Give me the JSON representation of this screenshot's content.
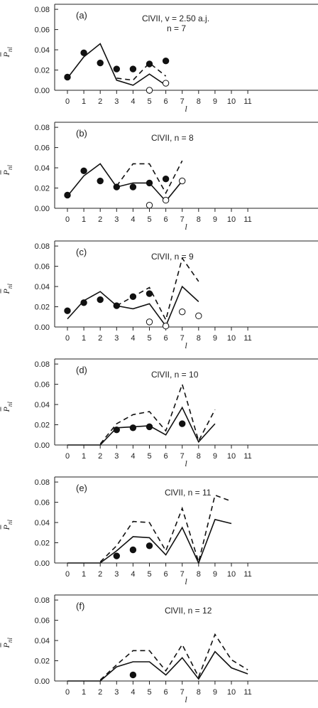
{
  "figure": {
    "xlabel": "l",
    "ylabel": "P",
    "ylabel_sub": "nl",
    "xticks": [
      "0",
      "1",
      "2",
      "3",
      "4",
      "5",
      "6",
      "7",
      "8",
      "9",
      "10",
      "11"
    ],
    "yticks": [
      "0.00",
      "0.02",
      "0.04",
      "0.06",
      "0.08"
    ]
  },
  "chart_data": [
    {
      "type": "line",
      "panel": "(a)",
      "annotation_line1": "ClVII, v = 2.50 a.j.",
      "annotation_line2": "n  = 7",
      "xlim": [
        0,
        11
      ],
      "ylim": [
        0,
        0.085
      ],
      "series": [
        {
          "style": "solid",
          "points": [
            [
              0,
              0.012
            ],
            [
              1,
              0.033
            ],
            [
              2,
              0.046
            ],
            [
              3,
              0.01
            ],
            [
              4,
              0.005
            ],
            [
              5,
              0.016
            ],
            [
              6,
              0.005
            ]
          ]
        },
        {
          "style": "dashed",
          "points": [
            [
              3,
              0.012
            ],
            [
              4,
              0.01
            ],
            [
              5,
              0.027
            ],
            [
              6,
              0.014
            ]
          ]
        },
        {
          "style": "filled-circle",
          "points": [
            [
              0,
              0.013
            ],
            [
              1,
              0.037
            ],
            [
              2,
              0.027
            ],
            [
              3,
              0.021
            ],
            [
              4,
              0.021
            ],
            [
              5,
              0.026
            ],
            [
              6,
              0.029
            ]
          ]
        },
        {
          "style": "open-circle",
          "points": [
            [
              5,
              0.0
            ],
            [
              6,
              0.007
            ]
          ]
        }
      ]
    },
    {
      "type": "line",
      "panel": "(b)",
      "annotation_line1": "ClVII,  n = 8",
      "annotation_line2": "",
      "xlim": [
        0,
        11
      ],
      "ylim": [
        0,
        0.085
      ],
      "series": [
        {
          "style": "solid",
          "points": [
            [
              0,
              0.012
            ],
            [
              1,
              0.032
            ],
            [
              2,
              0.044
            ],
            [
              3,
              0.021
            ],
            [
              4,
              0.025
            ],
            [
              5,
              0.025
            ],
            [
              6,
              0.007
            ],
            [
              7,
              0.027
            ]
          ]
        },
        {
          "style": "dashed",
          "points": [
            [
              3,
              0.022
            ],
            [
              4,
              0.044
            ],
            [
              5,
              0.044
            ],
            [
              6,
              0.015
            ],
            [
              7,
              0.047
            ]
          ]
        },
        {
          "style": "filled-circle",
          "points": [
            [
              0,
              0.013
            ],
            [
              1,
              0.037
            ],
            [
              2,
              0.027
            ],
            [
              3,
              0.021
            ],
            [
              4,
              0.021
            ],
            [
              5,
              0.025
            ],
            [
              6,
              0.029
            ]
          ]
        },
        {
          "style": "open-circle",
          "points": [
            [
              5,
              0.003
            ],
            [
              6,
              0.008
            ],
            [
              7,
              0.027
            ]
          ]
        }
      ]
    },
    {
      "type": "line",
      "panel": "(c)",
      "annotation_line1": "ClVII,  n = 9",
      "annotation_line2": "",
      "xlim": [
        0,
        11
      ],
      "ylim": [
        0,
        0.085
      ],
      "series": [
        {
          "style": "solid",
          "points": [
            [
              0,
              0.008
            ],
            [
              1,
              0.026
            ],
            [
              2,
              0.035
            ],
            [
              3,
              0.021
            ],
            [
              4,
              0.018
            ],
            [
              5,
              0.023
            ],
            [
              6,
              0.001
            ],
            [
              7,
              0.04
            ],
            [
              8,
              0.025
            ]
          ]
        },
        {
          "style": "dashed",
          "points": [
            [
              3,
              0.021
            ],
            [
              4,
              0.03
            ],
            [
              5,
              0.039
            ],
            [
              6,
              0.007
            ],
            [
              7,
              0.068
            ],
            [
              8,
              0.045
            ]
          ]
        },
        {
          "style": "filled-circle",
          "points": [
            [
              0,
              0.016
            ],
            [
              1,
              0.024
            ],
            [
              2,
              0.027
            ],
            [
              3,
              0.021
            ],
            [
              4,
              0.03
            ],
            [
              5,
              0.033
            ]
          ]
        },
        {
          "style": "open-circle",
          "points": [
            [
              5,
              0.005
            ],
            [
              6,
              0.001
            ],
            [
              7,
              0.015
            ],
            [
              8,
              0.011
            ]
          ]
        }
      ]
    },
    {
      "type": "line",
      "panel": "(d)",
      "annotation_line1": "ClVII,  n = 10",
      "annotation_line2": "",
      "xlim": [
        0,
        11
      ],
      "ylim": [
        0,
        0.085
      ],
      "series": [
        {
          "style": "solid",
          "points": [
            [
              0,
              0
            ],
            [
              1,
              0
            ],
            [
              2,
              0
            ],
            [
              3,
              0.017
            ],
            [
              4,
              0.018
            ],
            [
              5,
              0.019
            ],
            [
              6,
              0.01
            ],
            [
              7,
              0.037
            ],
            [
              8,
              0.003
            ],
            [
              9,
              0.021
            ]
          ]
        },
        {
          "style": "dashed",
          "points": [
            [
              2,
              0.001
            ],
            [
              3,
              0.021
            ],
            [
              4,
              0.03
            ],
            [
              5,
              0.033
            ],
            [
              6,
              0.014
            ],
            [
              7,
              0.06
            ],
            [
              8,
              0.004
            ],
            [
              9,
              0.035
            ]
          ]
        },
        {
          "style": "filled-circle",
          "points": [
            [
              3,
              0.015
            ],
            [
              4,
              0.017
            ],
            [
              5,
              0.018
            ],
            [
              7,
              0.021
            ]
          ]
        }
      ]
    },
    {
      "type": "line",
      "panel": "(e)",
      "annotation_line1": "ClVII,  n = 11",
      "annotation_line2": "",
      "xlim": [
        0,
        11
      ],
      "ylim": [
        0,
        0.085
      ],
      "series": [
        {
          "style": "solid",
          "points": [
            [
              0,
              0
            ],
            [
              1,
              0
            ],
            [
              2,
              0
            ],
            [
              3,
              0.012
            ],
            [
              4,
              0.026
            ],
            [
              5,
              0.025
            ],
            [
              6,
              0.008
            ],
            [
              7,
              0.035
            ],
            [
              8,
              0
            ],
            [
              9,
              0.043
            ],
            [
              10,
              0.039
            ]
          ]
        },
        {
          "style": "dashed",
          "points": [
            [
              2,
              0.001
            ],
            [
              3,
              0.017
            ],
            [
              4,
              0.041
            ],
            [
              5,
              0.04
            ],
            [
              6,
              0.012
            ],
            [
              7,
              0.054
            ],
            [
              8,
              0.001
            ],
            [
              9,
              0.067
            ],
            [
              10,
              0.061
            ]
          ]
        },
        {
          "style": "filled-circle",
          "points": [
            [
              3,
              0.007
            ],
            [
              4,
              0.013
            ],
            [
              5,
              0.017
            ]
          ]
        }
      ]
    },
    {
      "type": "line",
      "panel": "(f)",
      "annotation_line1": "ClVII,  n = 12",
      "annotation_line2": "",
      "xlim": [
        0,
        11
      ],
      "ylim": [
        0,
        0.085
      ],
      "series": [
        {
          "style": "solid",
          "points": [
            [
              0,
              0
            ],
            [
              1,
              0
            ],
            [
              2,
              0
            ],
            [
              3,
              0.014
            ],
            [
              4,
              0.019
            ],
            [
              5,
              0.019
            ],
            [
              6,
              0.006
            ],
            [
              7,
              0.023
            ],
            [
              8,
              0.002
            ],
            [
              9,
              0.029
            ],
            [
              10,
              0.013
            ],
            [
              11,
              0.007
            ]
          ]
        },
        {
          "style": "dashed",
          "points": [
            [
              2,
              0.001
            ],
            [
              3,
              0.016
            ],
            [
              4,
              0.03
            ],
            [
              5,
              0.03
            ],
            [
              6,
              0.01
            ],
            [
              7,
              0.036
            ],
            [
              8,
              0.004
            ],
            [
              9,
              0.046
            ],
            [
              10,
              0.021
            ],
            [
              11,
              0.011
            ]
          ]
        },
        {
          "style": "filled-circle",
          "points": [
            [
              4,
              0.006
            ]
          ]
        }
      ]
    }
  ]
}
